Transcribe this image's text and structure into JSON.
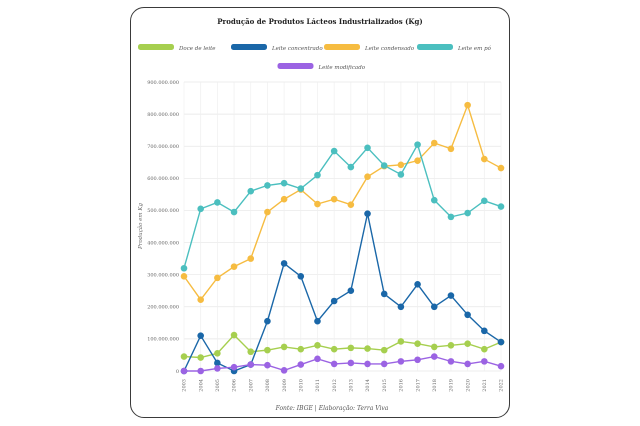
{
  "chart_data": {
    "type": "line",
    "title": "Produção de Produtos Lácteos Industrializados (Kg)",
    "ylabel": "Produção em Kg",
    "source": "Fonte: IBGE | Elaboração: Terra Viva",
    "x": [
      "2003",
      "2004",
      "2005",
      "2006",
      "2007",
      "2008",
      "2009",
      "2010",
      "2011",
      "2012",
      "2013",
      "2014",
      "2015",
      "2016",
      "2017",
      "2018",
      "2019",
      "2020",
      "2021",
      "2022"
    ],
    "ylim": [
      0,
      900000000
    ],
    "y_ticks": [
      "0",
      "100.000.000",
      "200.000.000",
      "300.000.000",
      "400.000.000",
      "500.000.000",
      "600.000.000",
      "700.000.000",
      "800.000.000",
      "900.000.000"
    ],
    "legend_position": "top",
    "grid": true,
    "series": [
      {
        "name": "Doce de leite",
        "color": "#a6cf4f",
        "values": [
          45000000,
          42000000,
          55000000,
          112000000,
          60000000,
          65000000,
          75000000,
          68000000,
          80000000,
          68000000,
          72000000,
          70000000,
          65000000,
          92000000,
          85000000,
          75000000,
          80000000,
          85000000,
          68000000,
          90000000
        ]
      },
      {
        "name": "Leite concentrado",
        "color": "#1a67a8",
        "values": [
          0,
          110000000,
          25000000,
          0,
          20000000,
          155000000,
          335000000,
          295000000,
          155000000,
          218000000,
          250000000,
          490000000,
          240000000,
          200000000,
          270000000,
          200000000,
          235000000,
          175000000,
          125000000,
          90000000
        ]
      },
      {
        "name": "Leite condensado",
        "color": "#f6bc41",
        "values": [
          295000000,
          222000000,
          290000000,
          325000000,
          350000000,
          495000000,
          535000000,
          565000000,
          520000000,
          535000000,
          518000000,
          605000000,
          638000000,
          642000000,
          655000000,
          710000000,
          692000000,
          828000000,
          660000000,
          632000000
        ]
      },
      {
        "name": "Leite em pó",
        "color": "#4bbfbf",
        "values": [
          320000000,
          505000000,
          525000000,
          495000000,
          560000000,
          578000000,
          585000000,
          568000000,
          610000000,
          685000000,
          635000000,
          695000000,
          640000000,
          612000000,
          705000000,
          532000000,
          480000000,
          492000000,
          530000000,
          512000000
        ]
      },
      {
        "name": "Leite modificado",
        "color": "#9b63e3",
        "values": [
          0,
          0,
          8000000,
          12000000,
          20000000,
          18000000,
          2000000,
          20000000,
          38000000,
          22000000,
          25000000,
          22000000,
          22000000,
          30000000,
          35000000,
          45000000,
          30000000,
          22000000,
          30000000,
          15000000
        ]
      }
    ]
  }
}
